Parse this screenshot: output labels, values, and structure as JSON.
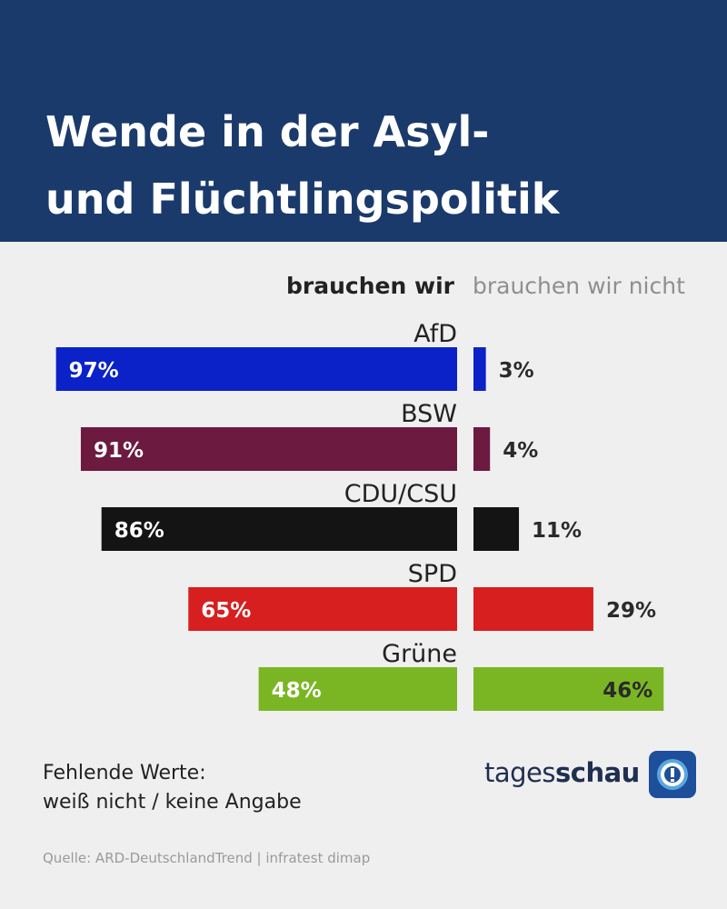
{
  "header": {
    "title_line1": "Wende in der Asyl-",
    "title_line2": "und Flüchtlingspolitik"
  },
  "chart_data": {
    "type": "bar",
    "orientation": "horizontal-diverging",
    "columns": {
      "left": "brauchen wir",
      "right": "brauchen wir nicht"
    },
    "categories": [
      "AfD",
      "BSW",
      "CDU/CSU",
      "SPD",
      "Grüne"
    ],
    "series": [
      {
        "name": "brauchen wir",
        "values": [
          97,
          91,
          86,
          65,
          48
        ]
      },
      {
        "name": "brauchen wir nicht",
        "values": [
          3,
          4,
          11,
          29,
          46
        ]
      }
    ],
    "colors": [
      "#0a22c8",
      "#6c1a40",
      "#141414",
      "#d71f1f",
      "#7ab624"
    ],
    "value_suffix": "%",
    "xlim": [
      0,
      100
    ]
  },
  "footnote": {
    "line1": "Fehlende Werte:",
    "line2": "weiß nicht / keine Angabe"
  },
  "brand": {
    "prefix": "tages",
    "suffix": "schau",
    "logo_icon": "tagesschau-clock-icon"
  },
  "source": "Quelle: ARD-DeutschlandTrend | infratest dimap"
}
